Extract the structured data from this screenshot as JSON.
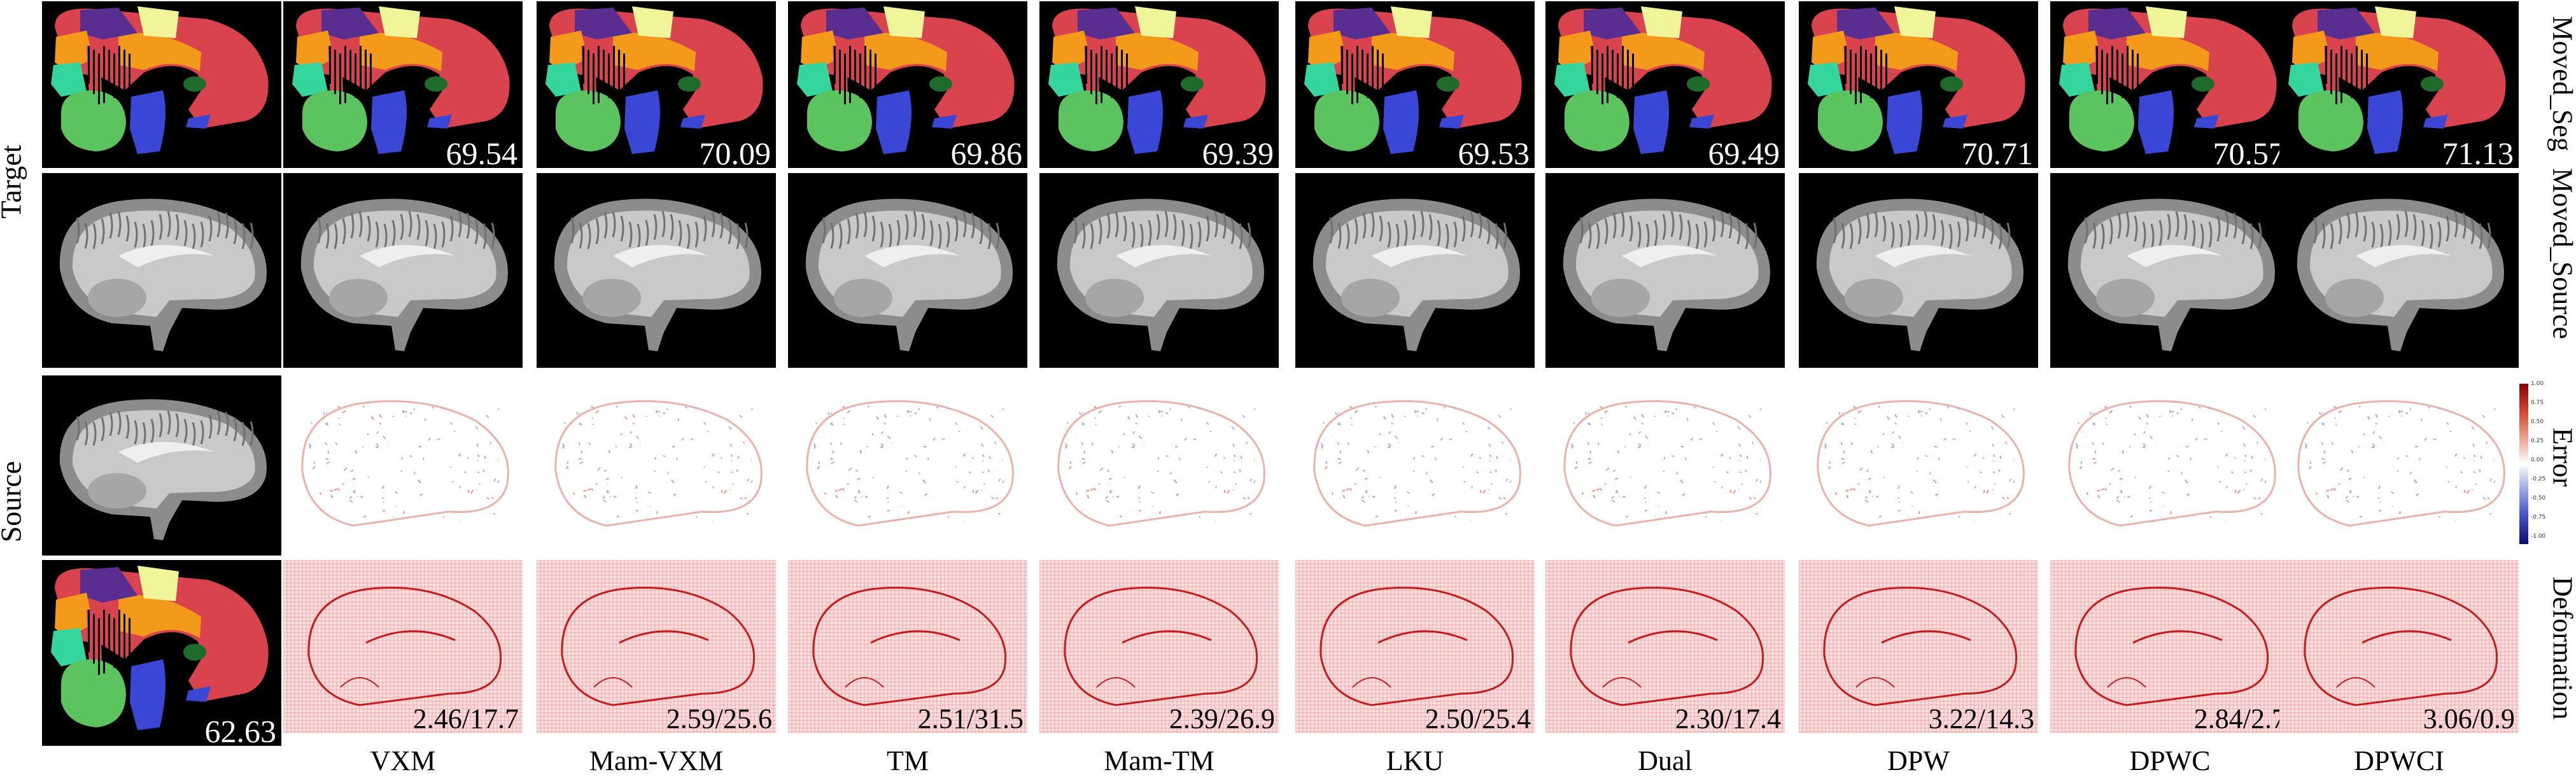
{
  "methods": [
    "VXM",
    "Mam-VXM",
    "TM",
    "Mam-TM",
    "LKU",
    "Dual",
    "DPW",
    "DPWC",
    "DPWCI"
  ],
  "left_labels": {
    "target": "Target",
    "source": "Source"
  },
  "row_labels": {
    "moved_seg": "Moved_Seg",
    "moved_source": "Moved_Source",
    "error": "Error",
    "deformation": "Deformation"
  },
  "source_seg_score": "62.63",
  "seg_scores": [
    "69.54",
    "70.09",
    "69.86",
    "69.39",
    "69.53",
    "69.49",
    "70.71",
    "70.57",
    "71.13"
  ],
  "deform_scores": [
    "2.46/17.7",
    "2.59/25.6",
    "2.51/31.5",
    "2.39/26.9",
    "2.50/25.4",
    "2.30/17.4",
    "3.22/14.3",
    "2.84/2.7",
    "3.06/0.9"
  ],
  "colorbar": {
    "ticks": [
      "1.00",
      "0.75",
      "0.50",
      "0.25",
      "0.00",
      "-0.25",
      "-0.50",
      "-0.75",
      "-1.00"
    ],
    "colors": {
      "max": "#8b0000",
      "mid": "#ffffff",
      "min": "#0a0a6e"
    }
  },
  "seg_colors": {
    "frontal": "#d8434e",
    "orange": "#f39a1a",
    "green": "#5cc45e",
    "blue": "#3a46d6",
    "yellow": "#f1f59a",
    "teal": "#35d69d",
    "darkgreen": "#1f6b2c",
    "purple": "#5a2d91"
  },
  "deform_colors": {
    "grid": "#f2a3a3",
    "bg": "#fbe1e1",
    "line": "#c41c1c"
  }
}
